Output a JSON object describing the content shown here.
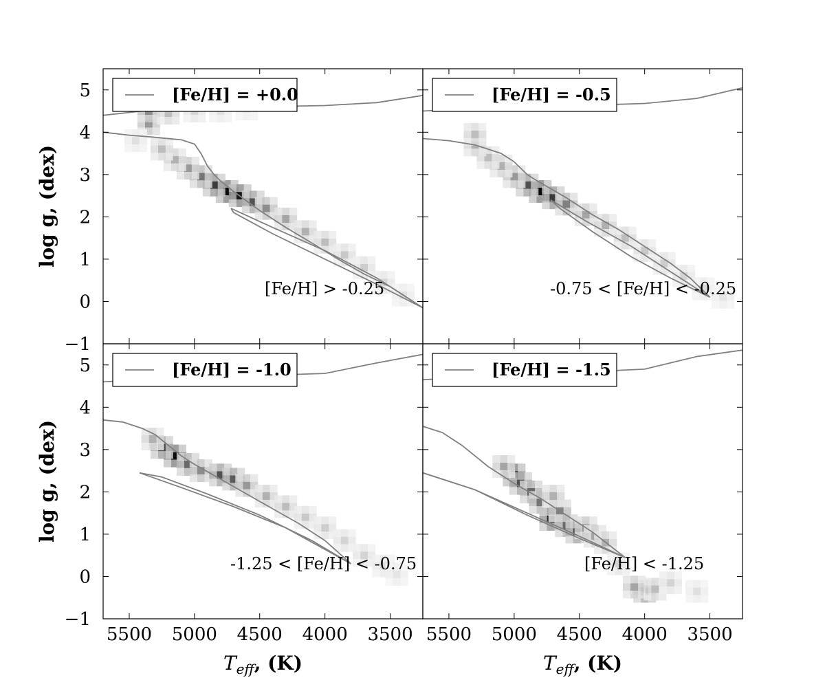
{
  "chart_data": [
    {
      "type": "heatmap",
      "panel": "top-left",
      "legend": {
        "label": "[Fe/H] = +0.0",
        "placement": "top-left"
      },
      "annotation": "[Fe/H] > -0.25",
      "xlabel": "",
      "ylabel": "log g, (dex)",
      "xlim": [
        5700,
        3250
      ],
      "ylim": [
        5.5,
        -1
      ],
      "xticks": [
        5500,
        5000,
        4500,
        4000,
        3500
      ],
      "yticks": [
        -1,
        0,
        1,
        2,
        3,
        4,
        5
      ],
      "isochrone": [
        {
          "name": "",
          "x": [
            5700,
            5500,
            5300,
            5100,
            5000,
            4950,
            4900,
            4850,
            4800,
            4700,
            4500,
            4300,
            4100,
            3900,
            3700,
            3500,
            3250
          ],
          "y": [
            4.0,
            3.93,
            3.88,
            3.82,
            3.72,
            3.5,
            3.2,
            3.0,
            2.85,
            2.6,
            2.15,
            1.75,
            1.38,
            1.0,
            0.65,
            0.35,
            -0.15
          ]
        },
        {
          "name": "",
          "x": [
            3250,
            3600,
            4000,
            4400,
            4700,
            4720
          ],
          "y": [
            -0.15,
            0.4,
            1.0,
            1.6,
            2.1,
            2.2
          ]
        },
        {
          "name": "",
          "x": [
            4720,
            4400,
            4000,
            3600,
            3250
          ],
          "y": [
            2.2,
            1.75,
            1.2,
            0.55,
            -0.15
          ]
        },
        {
          "name": "",
          "x": [
            5700,
            5400,
            5000,
            4500,
            4000,
            3600,
            3250
          ],
          "y": [
            4.4,
            4.5,
            4.57,
            4.6,
            4.63,
            4.7,
            4.87
          ]
        }
      ],
      "density": [
        {
          "teff": 4750,
          "logg": 2.6,
          "w": 1.0
        },
        {
          "teff": 4650,
          "logg": 2.5,
          "w": 0.95
        },
        {
          "teff": 4850,
          "logg": 2.75,
          "w": 0.8
        },
        {
          "teff": 4550,
          "logg": 2.35,
          "w": 0.7
        },
        {
          "teff": 4950,
          "logg": 2.95,
          "w": 0.55
        },
        {
          "teff": 4450,
          "logg": 2.2,
          "w": 0.45
        },
        {
          "teff": 5050,
          "logg": 3.15,
          "w": 0.4
        },
        {
          "teff": 4300,
          "logg": 1.95,
          "w": 0.35
        },
        {
          "teff": 5150,
          "logg": 3.35,
          "w": 0.3
        },
        {
          "teff": 4150,
          "logg": 1.65,
          "w": 0.3
        },
        {
          "teff": 5250,
          "logg": 3.6,
          "w": 0.25
        },
        {
          "teff": 4000,
          "logg": 1.4,
          "w": 0.25
        },
        {
          "teff": 3850,
          "logg": 1.1,
          "w": 0.2
        },
        {
          "teff": 3700,
          "logg": 0.8,
          "w": 0.18
        },
        {
          "teff": 3550,
          "logg": 0.45,
          "w": 0.15
        },
        {
          "teff": 3400,
          "logg": 0.15,
          "w": 0.1
        },
        {
          "teff": 5350,
          "logg": 4.2,
          "w": 0.4
        },
        {
          "teff": 5350,
          "logg": 4.5,
          "w": 0.45
        },
        {
          "teff": 5200,
          "logg": 4.45,
          "w": 0.25
        },
        {
          "teff": 5000,
          "logg": 4.5,
          "w": 0.15
        },
        {
          "teff": 4800,
          "logg": 4.5,
          "w": 0.1
        },
        {
          "teff": 4600,
          "logg": 4.55,
          "w": 0.08
        },
        {
          "teff": 5450,
          "logg": 3.8,
          "w": 0.1
        }
      ]
    },
    {
      "type": "heatmap",
      "panel": "top-right",
      "legend": {
        "label": "[Fe/H] = -0.5",
        "placement": "top-left"
      },
      "annotation": "-0.75 < [Fe/H] < -0.25",
      "xlabel": "",
      "ylabel": "",
      "xlim": [
        5700,
        3250
      ],
      "ylim": [
        5.5,
        -1
      ],
      "xticks": [
        5500,
        5000,
        4500,
        4000,
        3500
      ],
      "yticks": [
        -1,
        0,
        1,
        2,
        3,
        4,
        5
      ],
      "isochrone": [
        {
          "name": "",
          "x": [
            5700,
            5500,
            5300,
            5100,
            5000,
            4950,
            4900,
            4850,
            4750,
            4600,
            4400,
            4200,
            4000,
            3800,
            3650,
            3500
          ],
          "y": [
            3.85,
            3.8,
            3.7,
            3.5,
            3.3,
            3.15,
            3.0,
            2.9,
            2.72,
            2.45,
            2.05,
            1.7,
            1.3,
            0.9,
            0.55,
            0.1
          ]
        },
        {
          "name": "",
          "x": [
            3500,
            3800,
            4100,
            4400,
            4650,
            4720
          ],
          "y": [
            0.1,
            0.55,
            1.05,
            1.65,
            2.2,
            2.4
          ]
        },
        {
          "name": "",
          "x": [
            4720,
            4450,
            4100,
            3800,
            3500
          ],
          "y": [
            2.4,
            1.9,
            1.3,
            0.7,
            0.1
          ]
        },
        {
          "name": "",
          "x": [
            5700,
            5400,
            5000,
            4500,
            4000,
            3600,
            3250
          ],
          "y": [
            4.5,
            4.55,
            4.6,
            4.63,
            4.68,
            4.8,
            5.05
          ]
        }
      ],
      "density": [
        {
          "teff": 4800,
          "logg": 2.6,
          "w": 1.0
        },
        {
          "teff": 4700,
          "logg": 2.45,
          "w": 0.8
        },
        {
          "teff": 4900,
          "logg": 2.75,
          "w": 0.7
        },
        {
          "teff": 4600,
          "logg": 2.3,
          "w": 0.5
        },
        {
          "teff": 5000,
          "logg": 2.95,
          "w": 0.4
        },
        {
          "teff": 4450,
          "logg": 2.05,
          "w": 0.35
        },
        {
          "teff": 5100,
          "logg": 3.2,
          "w": 0.3
        },
        {
          "teff": 4300,
          "logg": 1.8,
          "w": 0.3
        },
        {
          "teff": 5200,
          "logg": 3.4,
          "w": 0.25
        },
        {
          "teff": 4150,
          "logg": 1.5,
          "w": 0.25
        },
        {
          "teff": 5300,
          "logg": 3.7,
          "w": 0.3
        },
        {
          "teff": 4000,
          "logg": 1.2,
          "w": 0.2
        },
        {
          "teff": 3850,
          "logg": 0.9,
          "w": 0.18
        },
        {
          "teff": 3700,
          "logg": 0.6,
          "w": 0.15
        },
        {
          "teff": 3550,
          "logg": 0.3,
          "w": 0.12
        },
        {
          "teff": 3400,
          "logg": 0.1,
          "w": 0.08
        },
        {
          "teff": 5300,
          "logg": 3.95,
          "w": 0.25
        }
      ]
    },
    {
      "type": "heatmap",
      "panel": "bottom-left",
      "legend": {
        "label": "[Fe/H] = -1.0",
        "placement": "top-left"
      },
      "annotation": "-1.25 < [Fe/H] < -0.75",
      "xlabel": "T_eff, (K)",
      "ylabel": "log g, (dex)",
      "xlim": [
        5700,
        3250
      ],
      "ylim": [
        5.5,
        -1
      ],
      "xticks": [
        5500,
        5000,
        4500,
        4000,
        3500
      ],
      "yticks": [
        -1,
        0,
        1,
        2,
        3,
        4,
        5
      ],
      "isochrone": [
        {
          "name": "",
          "x": [
            5700,
            5550,
            5400,
            5300,
            5200,
            5100,
            5000,
            4800,
            4600,
            4400,
            4200,
            4000,
            3800
          ],
          "y": [
            3.7,
            3.65,
            3.5,
            3.35,
            3.1,
            2.85,
            2.65,
            2.3,
            1.95,
            1.6,
            1.25,
            0.85,
            0.3
          ]
        },
        {
          "name": "",
          "x": [
            3800,
            4100,
            4500,
            4900,
            5250,
            5420
          ],
          "y": [
            0.3,
            0.85,
            1.45,
            1.95,
            2.35,
            2.45
          ]
        },
        {
          "name": "",
          "x": [
            5420,
            5100,
            4700,
            4300,
            3800
          ],
          "y": [
            2.45,
            2.1,
            1.65,
            1.15,
            0.3
          ]
        },
        {
          "name": "",
          "x": [
            5700,
            5400,
            5000,
            4500,
            4000,
            3600,
            3250
          ],
          "y": [
            4.6,
            4.65,
            4.7,
            4.75,
            4.8,
            5.05,
            5.25
          ]
        }
      ],
      "density": [
        {
          "teff": 5150,
          "logg": 2.85,
          "w": 1.0
        },
        {
          "teff": 5250,
          "logg": 3.05,
          "w": 0.75
        },
        {
          "teff": 5050,
          "logg": 2.65,
          "w": 0.6
        },
        {
          "teff": 4950,
          "logg": 2.5,
          "w": 0.45
        },
        {
          "teff": 4800,
          "logg": 2.4,
          "w": 0.7
        },
        {
          "teff": 4700,
          "logg": 2.3,
          "w": 0.65
        },
        {
          "teff": 4600,
          "logg": 2.15,
          "w": 0.4
        },
        {
          "teff": 4450,
          "logg": 1.9,
          "w": 0.3
        },
        {
          "teff": 4300,
          "logg": 1.65,
          "w": 0.25
        },
        {
          "teff": 4150,
          "logg": 1.4,
          "w": 0.2
        },
        {
          "teff": 4000,
          "logg": 1.15,
          "w": 0.18
        },
        {
          "teff": 3850,
          "logg": 0.85,
          "w": 0.15
        },
        {
          "teff": 3700,
          "logg": 0.5,
          "w": 0.15
        },
        {
          "teff": 3550,
          "logg": 0.25,
          "w": 0.12
        },
        {
          "teff": 3450,
          "logg": 0.05,
          "w": 0.08
        },
        {
          "teff": 5320,
          "logg": 3.25,
          "w": 0.3
        }
      ]
    },
    {
      "type": "heatmap",
      "panel": "bottom-right",
      "legend": {
        "label": "[Fe/H] = -1.5",
        "placement": "top-left"
      },
      "annotation": "[Fe/H] < -1.25",
      "xlabel": "T_eff, (K)",
      "ylabel": "",
      "xlim": [
        5700,
        3250
      ],
      "ylim": [
        5.5,
        -1
      ],
      "xticks": [
        5500,
        5000,
        4500,
        4000,
        3500
      ],
      "yticks": [
        -1,
        0,
        1,
        2,
        3,
        4,
        5
      ],
      "isochrone": [
        {
          "name": "",
          "x": [
            5700,
            5550,
            5400,
            5300,
            5200,
            5100,
            5000,
            4800,
            4600,
            4400,
            4150
          ],
          "y": [
            3.55,
            3.4,
            3.1,
            2.85,
            2.6,
            2.4,
            2.2,
            1.85,
            1.45,
            1.05,
            0.45
          ]
        },
        {
          "name": "",
          "x": [
            4150,
            4500,
            4900,
            5300,
            5700
          ],
          "y": [
            0.45,
            0.95,
            1.5,
            2.05,
            2.45
          ]
        },
        {
          "name": "",
          "x": [
            5700,
            5300,
            4900,
            4500,
            4150
          ],
          "y": [
            2.45,
            2.05,
            1.45,
            0.9,
            0.45
          ]
        },
        {
          "name": "",
          "x": [
            5700,
            5400,
            5000,
            4500,
            4000,
            3600,
            3250
          ],
          "y": [
            4.65,
            4.7,
            4.77,
            4.83,
            4.9,
            5.2,
            5.35
          ]
        }
      ],
      "density": [
        {
          "teff": 5000,
          "logg": 2.4,
          "w": 1.0
        },
        {
          "teff": 4950,
          "logg": 2.2,
          "w": 0.7
        },
        {
          "teff": 4870,
          "logg": 2.0,
          "w": 0.6
        },
        {
          "teff": 4800,
          "logg": 1.75,
          "w": 0.55
        },
        {
          "teff": 4720,
          "logg": 1.35,
          "w": 0.85
        },
        {
          "teff": 4650,
          "logg": 1.55,
          "w": 0.5
        },
        {
          "teff": 4600,
          "logg": 1.2,
          "w": 0.6
        },
        {
          "teff": 4520,
          "logg": 1.05,
          "w": 0.7
        },
        {
          "teff": 4450,
          "logg": 1.15,
          "w": 0.4
        },
        {
          "teff": 4380,
          "logg": 0.95,
          "w": 0.35
        },
        {
          "teff": 4300,
          "logg": 0.8,
          "w": 0.3
        },
        {
          "teff": 4000,
          "logg": -0.35,
          "w": 0.65
        },
        {
          "teff": 4080,
          "logg": -0.25,
          "w": 0.35
        },
        {
          "teff": 3920,
          "logg": -0.3,
          "w": 0.25
        },
        {
          "teff": 3800,
          "logg": -0.15,
          "w": 0.15
        },
        {
          "teff": 3600,
          "logg": -0.35,
          "w": 0.1
        },
        {
          "teff": 5080,
          "logg": 2.6,
          "w": 0.35
        },
        {
          "teff": 4700,
          "logg": 1.9,
          "w": 0.3
        },
        {
          "teff": 4200,
          "logg": 0.3,
          "w": 0.15
        }
      ]
    }
  ]
}
